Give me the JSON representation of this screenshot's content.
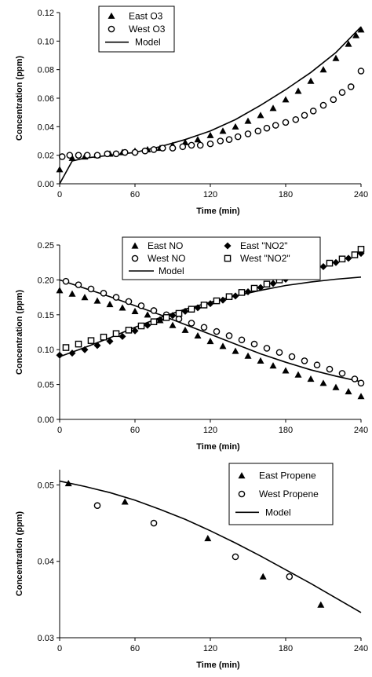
{
  "chart_data": [
    {
      "type": "scatter",
      "xlabel": "Time (min)",
      "ylabel": "Concentration (ppm)",
      "xlim": [
        0,
        240
      ],
      "ylim": [
        0,
        0.12
      ],
      "x_ticks": [
        "0",
        "60",
        "120",
        "180",
        "240"
      ],
      "y_ticks": [
        "0.00",
        "0.02",
        "0.04",
        "0.06",
        "0.08",
        "0.10",
        "0.12"
      ],
      "legend_position": "top-left",
      "series": [
        {
          "name": "East O3",
          "marker": "triangle",
          "x": [
            0,
            10,
            20,
            30,
            40,
            50,
            60,
            70,
            80,
            90,
            100,
            110,
            120,
            130,
            140,
            150,
            160,
            170,
            180,
            190,
            200,
            210,
            220,
            230,
            236,
            240
          ],
          "y": [
            0.01,
            0.018,
            0.019,
            0.02,
            0.021,
            0.022,
            0.023,
            0.024,
            0.025,
            0.027,
            0.029,
            0.031,
            0.034,
            0.037,
            0.04,
            0.044,
            0.048,
            0.053,
            0.059,
            0.065,
            0.072,
            0.08,
            0.088,
            0.098,
            0.104,
            0.108
          ]
        },
        {
          "name": "West O3",
          "marker": "circle",
          "x": [
            2,
            8,
            15,
            22,
            30,
            38,
            45,
            52,
            60,
            68,
            75,
            82,
            90,
            98,
            105,
            112,
            120,
            128,
            135,
            142,
            150,
            158,
            165,
            172,
            180,
            188,
            195,
            202,
            210,
            218,
            225,
            232,
            240
          ],
          "y": [
            0.019,
            0.02,
            0.02,
            0.02,
            0.02,
            0.021,
            0.021,
            0.022,
            0.022,
            0.023,
            0.024,
            0.025,
            0.025,
            0.026,
            0.027,
            0.027,
            0.028,
            0.03,
            0.031,
            0.033,
            0.035,
            0.037,
            0.039,
            0.041,
            0.043,
            0.045,
            0.048,
            0.051,
            0.055,
            0.059,
            0.064,
            0.068,
            0.079
          ]
        },
        {
          "name": "Model",
          "marker": "line",
          "x": [
            0,
            10,
            20,
            40,
            60,
            80,
            100,
            120,
            140,
            160,
            180,
            200,
            220,
            240
          ],
          "y": [
            0.0,
            0.016,
            0.018,
            0.02,
            0.022,
            0.026,
            0.031,
            0.037,
            0.045,
            0.055,
            0.066,
            0.078,
            0.092,
            0.11
          ]
        }
      ]
    },
    {
      "type": "scatter",
      "xlabel": "Time (min)",
      "ylabel": "Concentration (ppm)",
      "xlim": [
        0,
        240
      ],
      "ylim": [
        0,
        0.25
      ],
      "x_ticks": [
        "0",
        "60",
        "120",
        "180",
        "240"
      ],
      "y_ticks": [
        "0.00",
        "0.05",
        "0.10",
        "0.15",
        "0.20",
        "0.25"
      ],
      "legend_position": "top",
      "series": [
        {
          "name": "East NO",
          "marker": "triangle",
          "x": [
            0,
            10,
            20,
            30,
            40,
            50,
            60,
            70,
            80,
            90,
            100,
            110,
            120,
            130,
            140,
            150,
            160,
            170,
            180,
            190,
            200,
            210,
            220,
            230,
            240
          ],
          "y": [
            0.185,
            0.18,
            0.175,
            0.17,
            0.165,
            0.16,
            0.155,
            0.15,
            0.142,
            0.135,
            0.128,
            0.12,
            0.112,
            0.105,
            0.098,
            0.091,
            0.084,
            0.077,
            0.07,
            0.064,
            0.058,
            0.052,
            0.046,
            0.04,
            0.033
          ]
        },
        {
          "name": "East \"NO2\"",
          "marker": "diamond",
          "x": [
            0,
            10,
            20,
            30,
            40,
            50,
            60,
            70,
            80,
            90,
            100,
            110,
            120,
            130,
            140,
            150,
            160,
            170,
            180,
            190,
            200,
            210,
            220,
            230,
            240
          ],
          "y": [
            0.092,
            0.095,
            0.1,
            0.106,
            0.112,
            0.119,
            0.127,
            0.135,
            0.143,
            0.149,
            0.155,
            0.16,
            0.166,
            0.171,
            0.177,
            0.183,
            0.189,
            0.195,
            0.201,
            0.207,
            0.213,
            0.219,
            0.225,
            0.231,
            0.238
          ]
        },
        {
          "name": "West NO",
          "marker": "circle",
          "x": [
            5,
            15,
            25,
            35,
            45,
            55,
            65,
            75,
            85,
            95,
            105,
            115,
            125,
            135,
            145,
            155,
            165,
            175,
            185,
            195,
            205,
            215,
            225,
            235,
            240
          ],
          "y": [
            0.198,
            0.193,
            0.187,
            0.181,
            0.175,
            0.169,
            0.163,
            0.156,
            0.15,
            0.144,
            0.138,
            0.132,
            0.126,
            0.12,
            0.114,
            0.108,
            0.102,
            0.096,
            0.09,
            0.084,
            0.078,
            0.072,
            0.066,
            0.058,
            0.052
          ]
        },
        {
          "name": "West \"NO2\"",
          "marker": "square",
          "x": [
            5,
            15,
            25,
            35,
            45,
            55,
            65,
            75,
            85,
            95,
            105,
            115,
            125,
            135,
            145,
            155,
            165,
            175,
            185,
            195,
            205,
            215,
            225,
            235,
            240
          ],
          "y": [
            0.103,
            0.108,
            0.113,
            0.118,
            0.123,
            0.128,
            0.134,
            0.14,
            0.146,
            0.152,
            0.158,
            0.164,
            0.17,
            0.176,
            0.182,
            0.188,
            0.194,
            0.2,
            0.206,
            0.212,
            0.218,
            0.224,
            0.23,
            0.236,
            0.244
          ]
        },
        {
          "name": "Model",
          "marker": "line",
          "x": [
            0,
            20,
            40,
            60,
            80,
            100,
            120,
            140,
            160,
            180,
            200,
            220,
            240
          ],
          "y": [
            0.2,
            0.188,
            0.176,
            0.163,
            0.15,
            0.136,
            0.122,
            0.108,
            0.094,
            0.082,
            0.071,
            0.062,
            0.054
          ]
        },
        {
          "name": "",
          "marker": "line",
          "x": [
            0,
            20,
            40,
            60,
            80,
            100,
            120,
            140,
            160,
            180,
            200,
            220,
            240
          ],
          "y": [
            0.09,
            0.103,
            0.117,
            0.132,
            0.146,
            0.158,
            0.168,
            0.177,
            0.185,
            0.192,
            0.197,
            0.201,
            0.204
          ]
        }
      ]
    },
    {
      "type": "scatter",
      "xlabel": "Time (min)",
      "ylabel": "Concentration (ppm)",
      "xlim": [
        0,
        240
      ],
      "ylim": [
        0.03,
        0.052
      ],
      "x_ticks": [
        "0",
        "60",
        "120",
        "180",
        "240"
      ],
      "y_ticks": [
        "0.03",
        "0.04",
        "0.05"
      ],
      "legend_position": "top-right",
      "series": [
        {
          "name": "East Propene",
          "marker": "triangle",
          "x": [
            7,
            52,
            118,
            162,
            208
          ],
          "y": [
            0.0502,
            0.0478,
            0.043,
            0.038,
            0.0343
          ]
        },
        {
          "name": "West Propene",
          "marker": "circle",
          "x": [
            30,
            75,
            140,
            183
          ],
          "y": [
            0.0473,
            0.045,
            0.0406,
            0.038
          ]
        },
        {
          "name": "Model",
          "marker": "line",
          "x": [
            0,
            20,
            40,
            60,
            80,
            100,
            120,
            140,
            160,
            180,
            200,
            220,
            240
          ],
          "y": [
            0.0505,
            0.0498,
            0.049,
            0.048,
            0.0468,
            0.0455,
            0.044,
            0.0424,
            0.0407,
            0.0389,
            0.0371,
            0.0352,
            0.0333
          ]
        }
      ]
    }
  ]
}
